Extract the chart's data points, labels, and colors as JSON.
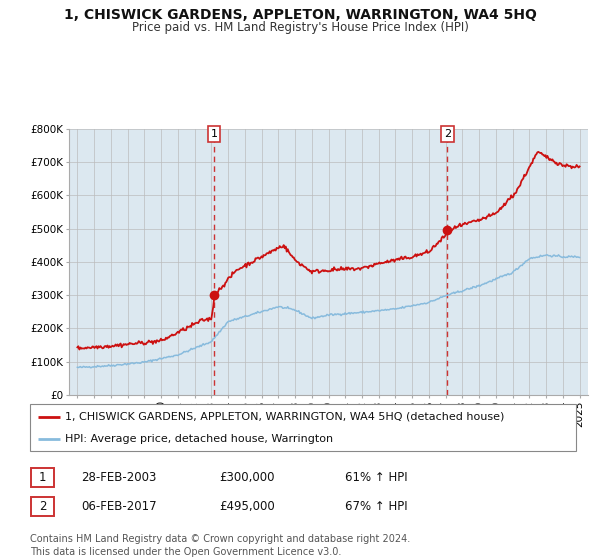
{
  "title": "1, CHISWICK GARDENS, APPLETON, WARRINGTON, WA4 5HQ",
  "subtitle": "Price paid vs. HM Land Registry's House Price Index (HPI)",
  "ylim": [
    0,
    800000
  ],
  "yticks": [
    0,
    100000,
    200000,
    300000,
    400000,
    500000,
    600000,
    700000,
    800000
  ],
  "ytick_labels": [
    "£0",
    "£100K",
    "£200K",
    "£300K",
    "£400K",
    "£500K",
    "£600K",
    "£700K",
    "£800K"
  ],
  "xlim_start": 1994.5,
  "xlim_end": 2025.5,
  "bg_color": "#dce8f0",
  "line1_color": "#cc1111",
  "line2_color": "#88bbdd",
  "vline_color": "#cc3333",
  "sale1_x": 2003.163,
  "sale1_y": 300000,
  "sale2_x": 2017.096,
  "sale2_y": 495000,
  "legend_line1": "1, CHISWICK GARDENS, APPLETON, WARRINGTON, WA4 5HQ (detached house)",
  "legend_line2": "HPI: Average price, detached house, Warrington",
  "table_row1": [
    "1",
    "28-FEB-2003",
    "£300,000",
    "61% ↑ HPI"
  ],
  "table_row2": [
    "2",
    "06-FEB-2017",
    "£495,000",
    "67% ↑ HPI"
  ],
  "footer": "Contains HM Land Registry data © Crown copyright and database right 2024.\nThis data is licensed under the Open Government Licence v3.0.",
  "title_fontsize": 10,
  "subtitle_fontsize": 8.5,
  "tick_fontsize": 7.5,
  "legend_fontsize": 8,
  "table_fontsize": 8.5,
  "footer_fontsize": 7
}
